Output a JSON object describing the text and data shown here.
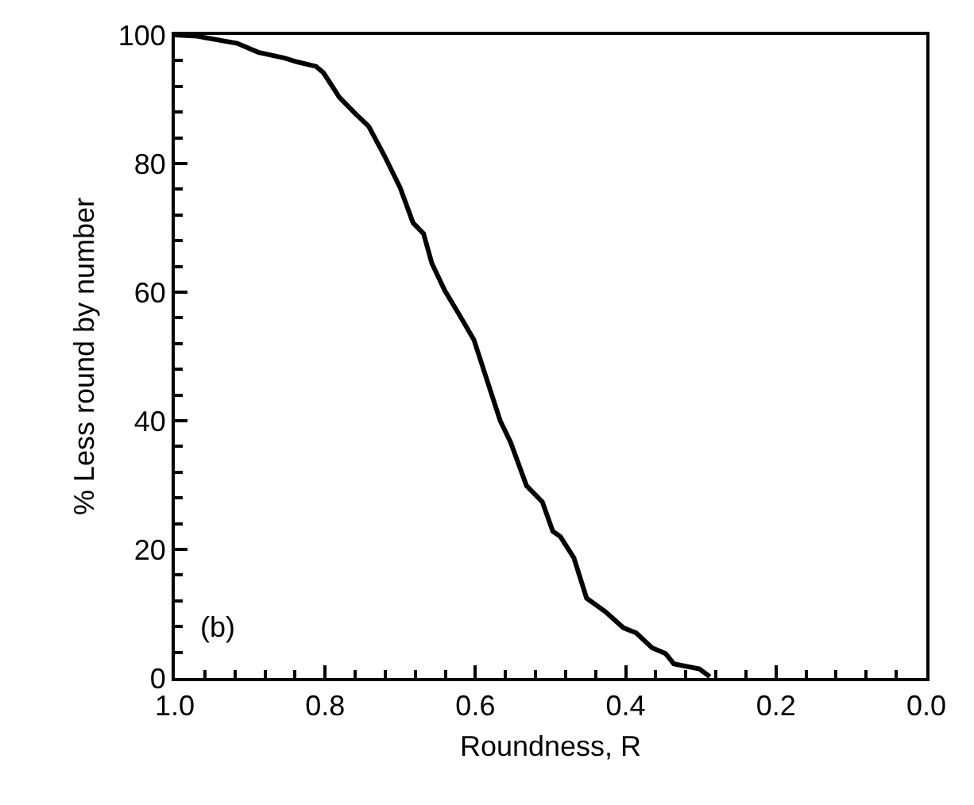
{
  "chart_data": {
    "type": "line",
    "xlabel": "Roundness, R",
    "ylabel": "% Less round by number",
    "annotations": [
      "(b)"
    ],
    "xlim": [
      1.0,
      0.0
    ],
    "xticks": [
      {
        "value": 1.0,
        "label": "1.0"
      },
      {
        "value": 0.8,
        "label": "0.8"
      },
      {
        "value": 0.6,
        "label": "0.6"
      },
      {
        "value": 0.4,
        "label": "0.4"
      },
      {
        "value": 0.2,
        "label": "0.2"
      },
      {
        "value": 0.0,
        "label": "0.0"
      }
    ],
    "ylim": [
      0,
      100
    ],
    "yticks": [
      0,
      20,
      40,
      60,
      80,
      100
    ],
    "grid": false,
    "marker": "none",
    "line_style": "solid",
    "series": [
      {
        "color": "#000000",
        "x": [
          1.0,
          0.97,
          0.917,
          0.889,
          0.854,
          0.837,
          0.812,
          0.802,
          0.781,
          0.76,
          0.742,
          0.721,
          0.7,
          0.683,
          0.669,
          0.658,
          0.641,
          0.62,
          0.602,
          0.567,
          0.553,
          0.532,
          0.511,
          0.497,
          0.487,
          0.469,
          0.452,
          0.427,
          0.403,
          0.386,
          0.365,
          0.347,
          0.336,
          0.302,
          0.288
        ],
        "values": [
          100,
          99.8,
          98.7,
          97.3,
          96.4,
          95.8,
          95.1,
          94.1,
          90.3,
          87.8,
          85.8,
          81.2,
          76.2,
          70.8,
          69.1,
          64.5,
          60.3,
          56.2,
          52.6,
          40,
          36.6,
          29.9,
          27.4,
          22.8,
          22,
          18.7,
          12.4,
          10.3,
          7.8,
          7,
          4.7,
          3.8,
          2.2,
          1.4,
          0.2
        ]
      }
    ]
  }
}
